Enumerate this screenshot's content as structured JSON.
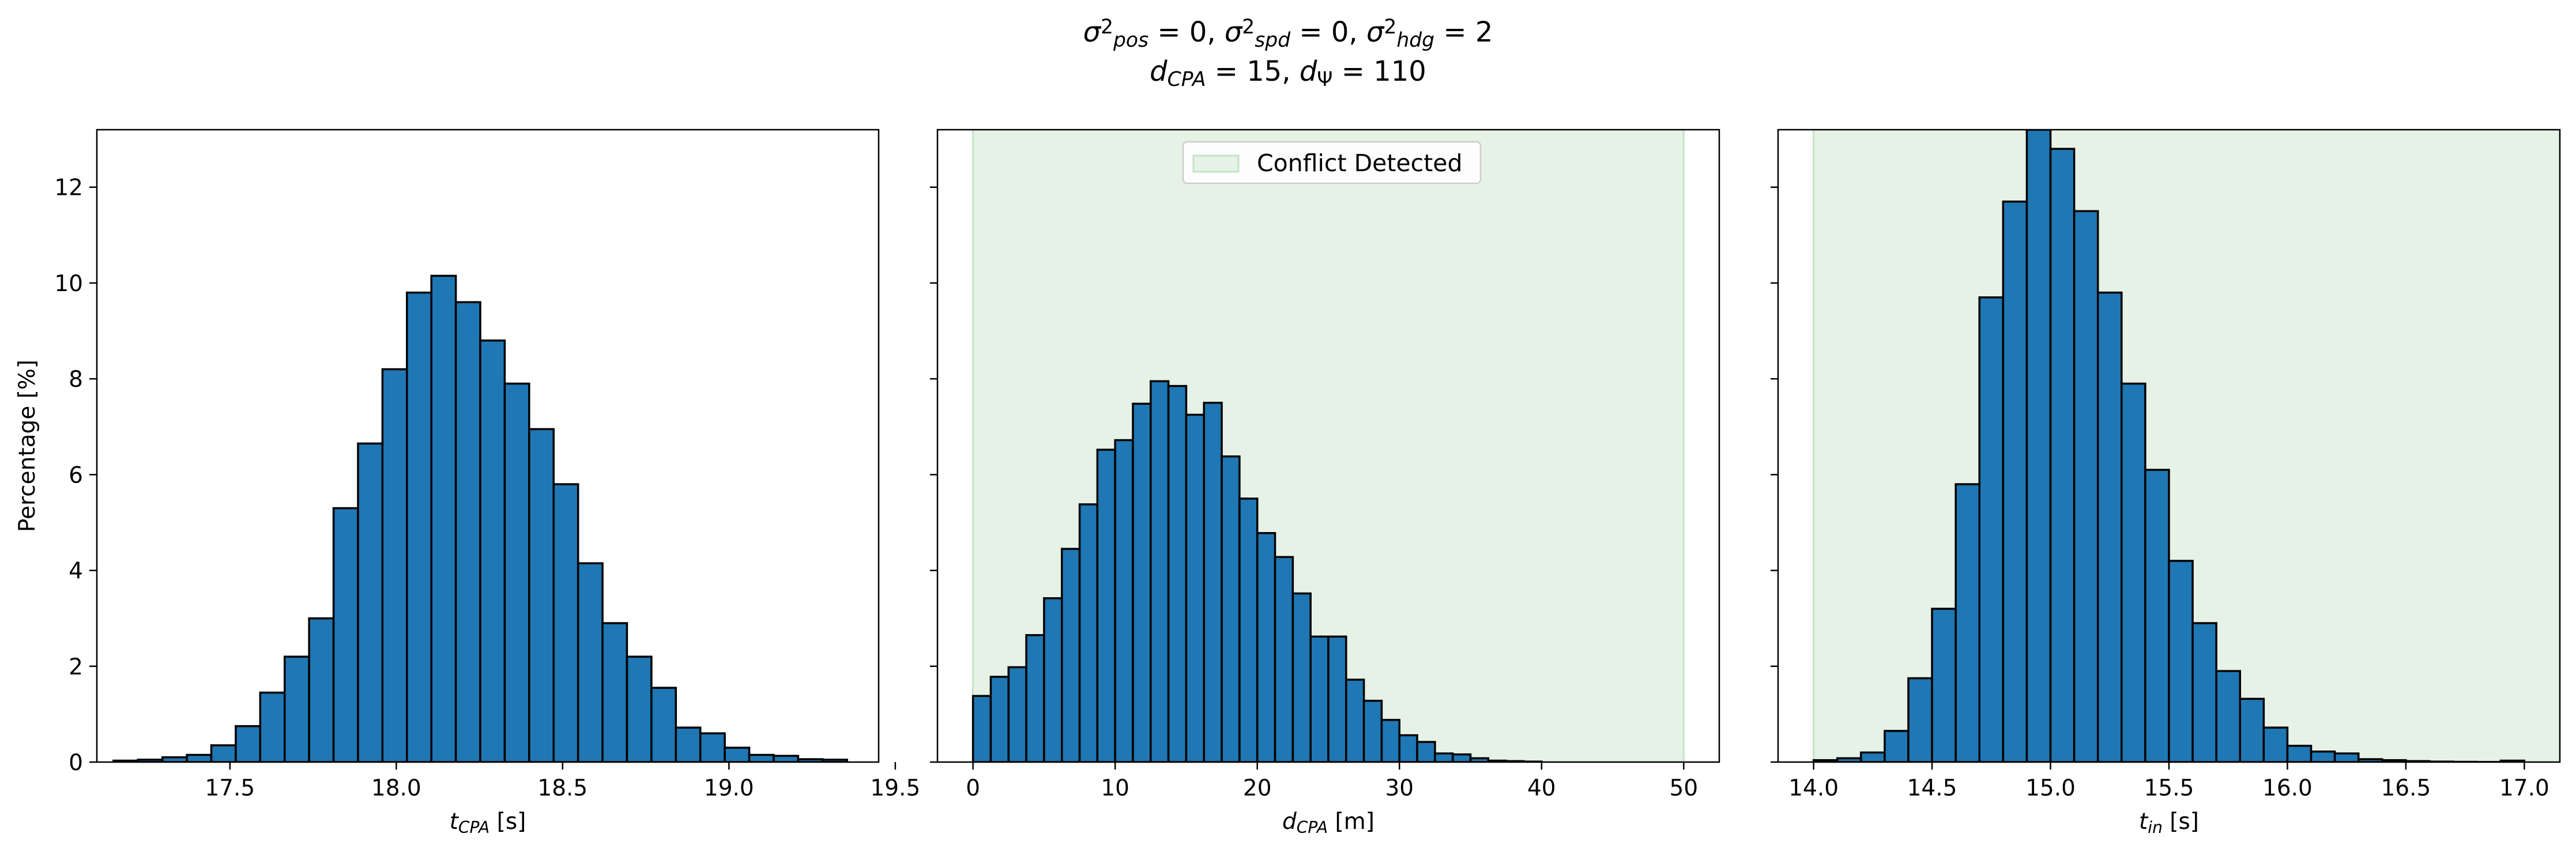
{
  "figure": {
    "title_line1": {
      "parts": [
        {
          "t": "σ",
          "i": true
        },
        {
          "t": "2",
          "sup": true
        },
        {
          "t": "pos",
          "sub": true,
          "i": true
        },
        {
          "t": " = 0, "
        },
        {
          "t": "σ",
          "i": true
        },
        {
          "t": "2",
          "sup": true
        },
        {
          "t": "spd",
          "sub": true,
          "i": true
        },
        {
          "t": " = 0, "
        },
        {
          "t": "σ",
          "i": true
        },
        {
          "t": "2",
          "sup": true
        },
        {
          "t": "hdg",
          "sub": true,
          "i": true
        },
        {
          "t": " = 2"
        }
      ]
    },
    "title_line2": {
      "parts": [
        {
          "t": "d",
          "i": true
        },
        {
          "t": "CPA",
          "sub": true,
          "i": true
        },
        {
          "t": " = 15, "
        },
        {
          "t": "d",
          "i": true
        },
        {
          "t": "Ψ",
          "sub": true
        },
        {
          "t": " = 110"
        }
      ]
    }
  },
  "colors": {
    "bar_fill": "#1f77b4",
    "bar_edge": "#000000",
    "conflict_fill": "#e6f2e6",
    "conflict_edge": "#c4e3c4"
  },
  "chart_data": [
    {
      "type": "bar",
      "subtype": "histogram",
      "ylabel": "Percentage [%]",
      "xlabel_parts": [
        {
          "t": "t",
          "i": true
        },
        {
          "t": "CPA",
          "sub": true,
          "i": true
        },
        {
          "t": " [s]"
        }
      ],
      "xlim": [
        17.1,
        19.45
      ],
      "ylim": [
        0,
        13.2
      ],
      "xticks": [
        17.5,
        18.0,
        18.5,
        19.0,
        19.5
      ],
      "xtick_labels": [
        "17.5",
        "18.0",
        "18.5",
        "19.0",
        "19.5"
      ],
      "yticks": [
        0,
        2,
        4,
        6,
        8,
        10,
        12
      ],
      "ytick_labels": [
        "0",
        "2",
        "4",
        "6",
        "8",
        "10",
        "12"
      ],
      "show_ytick_labels": true,
      "bins_start": 17.15,
      "bin_width": 0.0735,
      "values": [
        0.03,
        0.05,
        0.1,
        0.15,
        0.35,
        0.75,
        1.45,
        2.2,
        3.0,
        5.3,
        6.65,
        8.2,
        9.8,
        10.15,
        9.6,
        8.8,
        7.9,
        6.95,
        5.8,
        4.15,
        2.9,
        2.2,
        1.55,
        0.72,
        0.6,
        0.3,
        0.15,
        0.13,
        0.06,
        0.05
      ]
    },
    {
      "type": "bar",
      "subtype": "histogram",
      "xlabel_parts": [
        {
          "t": "d",
          "i": true
        },
        {
          "t": "CPA",
          "sub": true,
          "i": true
        },
        {
          "t": " [m]"
        }
      ],
      "xlim": [
        -2.5,
        52.5
      ],
      "ylim": [
        0,
        13.2
      ],
      "xticks": [
        0,
        10,
        20,
        30,
        40,
        50
      ],
      "xtick_labels": [
        "0",
        "10",
        "20",
        "30",
        "40",
        "50"
      ],
      "yticks": [
        0,
        2,
        4,
        6,
        8,
        10,
        12
      ],
      "show_ytick_labels": false,
      "shaded_region": {
        "x0": 0,
        "x1": 50,
        "label": "Conflict Detected"
      },
      "legend": {
        "position": "upper center",
        "entries": [
          "Conflict Detected"
        ]
      },
      "bins_start": 0,
      "bin_width": 1.25,
      "values": [
        1.38,
        1.78,
        1.98,
        2.65,
        3.42,
        4.45,
        5.38,
        6.52,
        6.72,
        7.48,
        7.95,
        7.85,
        7.25,
        7.5,
        6.38,
        5.5,
        4.78,
        4.28,
        3.52,
        2.62,
        2.62,
        1.72,
        1.28,
        0.88,
        0.56,
        0.42,
        0.18,
        0.16,
        0.08,
        0.03,
        0.02,
        0.01
      ]
    },
    {
      "type": "bar",
      "subtype": "histogram",
      "xlabel_parts": [
        {
          "t": "t",
          "i": true
        },
        {
          "t": "in",
          "sub": true,
          "i": true
        },
        {
          "t": " [s]"
        }
      ],
      "xlim": [
        13.85,
        17.15
      ],
      "ylim": [
        0,
        13.2
      ],
      "xticks": [
        14.0,
        14.5,
        15.0,
        15.5,
        16.0,
        16.5,
        17.0
      ],
      "xtick_labels": [
        "14.0",
        "14.5",
        "15.0",
        "15.5",
        "16.0",
        "16.5",
        "17.0"
      ],
      "yticks": [
        0,
        2,
        4,
        6,
        8,
        10,
        12
      ],
      "show_ytick_labels": false,
      "shaded_region": {
        "x0": 14.0,
        "x1": 17.15
      },
      "bins_start": 14.0,
      "bin_width": 0.1,
      "values": [
        0.04,
        0.08,
        0.2,
        0.65,
        1.75,
        3.2,
        5.8,
        9.7,
        11.7,
        13.2,
        12.8,
        11.5,
        9.8,
        7.9,
        6.1,
        4.2,
        2.9,
        1.9,
        1.32,
        0.72,
        0.34,
        0.22,
        0.18,
        0.06,
        0.04,
        0.02,
        0.01,
        0.005,
        0.002,
        0.03
      ]
    }
  ]
}
